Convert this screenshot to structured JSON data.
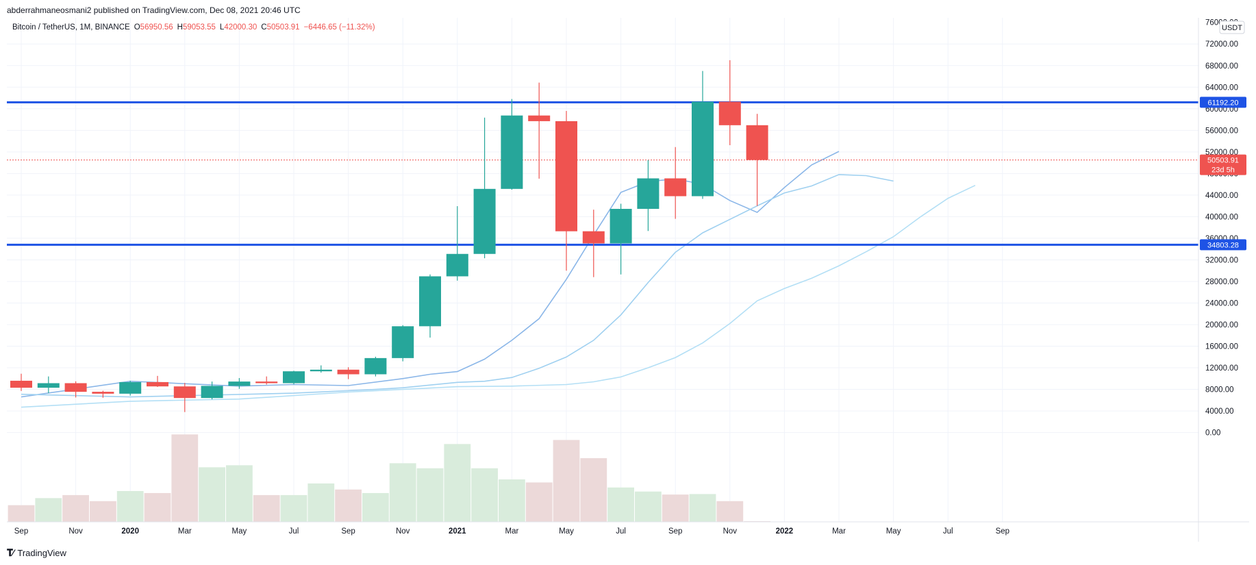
{
  "publish_line": "abderrahmaneosmani2 published on TradingView.com, Dec 08, 2021 20:46 UTC",
  "legend": {
    "symbol": "Bitcoin / TetherUS, 1M, BINANCE",
    "o_label": "O",
    "o_value": "56950.56",
    "h_label": "H",
    "h_value": "59053.55",
    "l_label": "L",
    "l_value": "42000.30",
    "c_label": "C",
    "c_value": "50503.91",
    "change": "−6446.65 (−11.32%)"
  },
  "currency_button": "USDT",
  "footer_logo": "TradingView",
  "colors": {
    "up": "#26a69a",
    "down": "#ef5350",
    "volume_up": "#d9ecdc",
    "volume_down": "#ecd9d9",
    "hline": "#1e53e5",
    "ma_fast": "#8ab6e8",
    "ma_mid": "#9fd0f0",
    "ma_slow": "#b3dff5",
    "grid": "#f0f3fa",
    "axis_text": "#131722"
  },
  "chart_data": {
    "type": "candlestick",
    "symbol": "Bitcoin / TetherUS",
    "interval": "1M",
    "exchange": "BINANCE",
    "ylim": [
      -2500,
      76000
    ],
    "y_ticks": [
      0,
      4000,
      8000,
      12000,
      16000,
      20000,
      24000,
      28000,
      32000,
      36000,
      40000,
      44000,
      48000,
      52000,
      56000,
      60000,
      64000,
      68000,
      72000
    ],
    "y_tick_labels": [
      "0.00",
      "4000.00",
      "8000.00",
      "12000.00",
      "16000.00",
      "20000.00",
      "24000.00",
      "28000.00",
      "32000.00",
      "36000.00",
      "40000.00",
      "44000.00",
      "48000.00",
      "52000.00",
      "56000.00",
      "60000.00",
      "64000.00",
      "68000.00",
      "72000.00"
    ],
    "y_top_partial_label": "76000.00",
    "x_tick_labels": [
      {
        "label": "Sep",
        "month_index": 0,
        "bold": false
      },
      {
        "label": "Nov",
        "month_index": 2,
        "bold": false
      },
      {
        "label": "2020",
        "month_index": 4,
        "bold": true
      },
      {
        "label": "Mar",
        "month_index": 6,
        "bold": false
      },
      {
        "label": "May",
        "month_index": 8,
        "bold": false
      },
      {
        "label": "Jul",
        "month_index": 10,
        "bold": false
      },
      {
        "label": "Sep",
        "month_index": 12,
        "bold": false
      },
      {
        "label": "Nov",
        "month_index": 14,
        "bold": false
      },
      {
        "label": "2021",
        "month_index": 16,
        "bold": true
      },
      {
        "label": "Mar",
        "month_index": 18,
        "bold": false
      },
      {
        "label": "May",
        "month_index": 20,
        "bold": false
      },
      {
        "label": "Jul",
        "month_index": 22,
        "bold": false
      },
      {
        "label": "Sep",
        "month_index": 24,
        "bold": false
      },
      {
        "label": "Nov",
        "month_index": 26,
        "bold": false
      },
      {
        "label": "2022",
        "month_index": 28,
        "bold": true
      },
      {
        "label": "Mar",
        "month_index": 30,
        "bold": false
      },
      {
        "label": "May",
        "month_index": 32,
        "bold": false
      },
      {
        "label": "Jul",
        "month_index": 34,
        "bold": false
      },
      {
        "label": "Sep",
        "month_index": 36,
        "bold": false
      }
    ],
    "candles": [
      {
        "month": "2019-09",
        "open": 9600,
        "high": 10900,
        "low": 7700,
        "close": 8300
      },
      {
        "month": "2019-10",
        "open": 8300,
        "high": 10400,
        "low": 7300,
        "close": 9150
      },
      {
        "month": "2019-11",
        "open": 9150,
        "high": 9500,
        "low": 6500,
        "close": 7550
      },
      {
        "month": "2019-12",
        "open": 7550,
        "high": 7750,
        "low": 6450,
        "close": 7200
      },
      {
        "month": "2020-01",
        "open": 7200,
        "high": 9600,
        "low": 6850,
        "close": 9350
      },
      {
        "month": "2020-02",
        "open": 9350,
        "high": 10500,
        "low": 8450,
        "close": 8550
      },
      {
        "month": "2020-03",
        "open": 8550,
        "high": 9200,
        "low": 3800,
        "close": 6400
      },
      {
        "month": "2020-04",
        "open": 6400,
        "high": 9450,
        "low": 6150,
        "close": 8650
      },
      {
        "month": "2020-05",
        "open": 8650,
        "high": 10100,
        "low": 8100,
        "close": 9450
      },
      {
        "month": "2020-06",
        "open": 9450,
        "high": 10400,
        "low": 8900,
        "close": 9150
      },
      {
        "month": "2020-07",
        "open": 9150,
        "high": 11450,
        "low": 8950,
        "close": 11350
      },
      {
        "month": "2020-08",
        "open": 11350,
        "high": 12450,
        "low": 11100,
        "close": 11650
      },
      {
        "month": "2020-09",
        "open": 11650,
        "high": 12100,
        "low": 9900,
        "close": 10800
      },
      {
        "month": "2020-10",
        "open": 10800,
        "high": 14050,
        "low": 10400,
        "close": 13800
      },
      {
        "month": "2020-11",
        "open": 13800,
        "high": 19900,
        "low": 13200,
        "close": 19700
      },
      {
        "month": "2020-12",
        "open": 19700,
        "high": 29300,
        "low": 17600,
        "close": 28950
      },
      {
        "month": "2021-01",
        "open": 28950,
        "high": 41950,
        "low": 28150,
        "close": 33100
      },
      {
        "month": "2021-02",
        "open": 33100,
        "high": 58350,
        "low": 32300,
        "close": 45150
      },
      {
        "month": "2021-03",
        "open": 45150,
        "high": 61800,
        "low": 45000,
        "close": 58750
      },
      {
        "month": "2021-04",
        "open": 58750,
        "high": 64850,
        "low": 47050,
        "close": 57700
      },
      {
        "month": "2021-05",
        "open": 57700,
        "high": 59600,
        "low": 30000,
        "close": 37300
      },
      {
        "month": "2021-06",
        "open": 37300,
        "high": 41300,
        "low": 28800,
        "close": 35050
      },
      {
        "month": "2021-07",
        "open": 35050,
        "high": 42400,
        "low": 29300,
        "close": 41450
      },
      {
        "month": "2021-08",
        "open": 41450,
        "high": 50500,
        "low": 37350,
        "close": 47100
      },
      {
        "month": "2021-09",
        "open": 47100,
        "high": 52900,
        "low": 39600,
        "close": 43800
      },
      {
        "month": "2021-10",
        "open": 43800,
        "high": 67000,
        "low": 43300,
        "close": 61300
      },
      {
        "month": "2021-11",
        "open": 61300,
        "high": 69000,
        "low": 53250,
        "close": 56950
      },
      {
        "month": "2021-12",
        "open": 56950.56,
        "high": 59053.55,
        "low": 42000.3,
        "close": 50503.91
      }
    ],
    "volume": [
      {
        "month": "2019-09",
        "value": 3300,
        "up": false
      },
      {
        "month": "2019-10",
        "value": 4700,
        "up": true
      },
      {
        "month": "2019-11",
        "value": 5300,
        "up": false
      },
      {
        "month": "2019-12",
        "value": 4100,
        "up": false
      },
      {
        "month": "2020-01",
        "value": 6100,
        "up": true
      },
      {
        "month": "2020-02",
        "value": 5700,
        "up": false
      },
      {
        "month": "2020-03",
        "value": 17300,
        "up": false
      },
      {
        "month": "2020-04",
        "value": 10800,
        "up": true
      },
      {
        "month": "2020-05",
        "value": 11200,
        "up": true
      },
      {
        "month": "2020-06",
        "value": 5300,
        "up": false
      },
      {
        "month": "2020-07",
        "value": 5300,
        "up": true
      },
      {
        "month": "2020-08",
        "value": 7600,
        "up": true
      },
      {
        "month": "2020-09",
        "value": 6400,
        "up": false
      },
      {
        "month": "2020-10",
        "value": 5700,
        "up": true
      },
      {
        "month": "2020-11",
        "value": 11600,
        "up": true
      },
      {
        "month": "2020-12",
        "value": 10600,
        "up": true
      },
      {
        "month": "2021-01",
        "value": 15400,
        "up": true
      },
      {
        "month": "2021-02",
        "value": 10600,
        "up": true
      },
      {
        "month": "2021-03",
        "value": 8400,
        "up": true
      },
      {
        "month": "2021-04",
        "value": 7800,
        "up": false
      },
      {
        "month": "2021-05",
        "value": 16200,
        "up": false
      },
      {
        "month": "2021-06",
        "value": 12600,
        "up": false
      },
      {
        "month": "2021-07",
        "value": 6800,
        "up": true
      },
      {
        "month": "2021-08",
        "value": 6000,
        "up": true
      },
      {
        "month": "2021-09",
        "value": 5400,
        "up": false
      },
      {
        "month": "2021-10",
        "value": 5500,
        "up": true
      },
      {
        "month": "2021-11",
        "value": 4100,
        "up": false
      },
      {
        "month": "2021-12",
        "value": 100,
        "up": false
      }
    ],
    "moving_averages": [
      {
        "key": "ma_fast",
        "points": [
          [
            0,
            6600
          ],
          [
            4,
            9500
          ],
          [
            8,
            8600
          ],
          [
            10,
            8900
          ],
          [
            12,
            8700
          ],
          [
            14,
            10000
          ],
          [
            15,
            10800
          ],
          [
            16,
            11300
          ],
          [
            17,
            13600
          ],
          [
            18,
            17100
          ],
          [
            19,
            21100
          ],
          [
            20,
            28400
          ],
          [
            21,
            36600
          ],
          [
            22,
            44500
          ],
          [
            23,
            46500
          ],
          [
            24,
            47000
          ],
          [
            25,
            46000
          ],
          [
            26,
            43000
          ],
          [
            27,
            40800
          ],
          [
            28,
            45400
          ],
          [
            29,
            49600
          ],
          [
            30,
            52100
          ]
        ]
      },
      {
        "key": "ma_mid",
        "points": [
          [
            0,
            7100
          ],
          [
            4,
            6600
          ],
          [
            10,
            7300
          ],
          [
            13,
            8000
          ],
          [
            14,
            8300
          ],
          [
            16,
            9300
          ],
          [
            17,
            9500
          ],
          [
            18,
            10200
          ],
          [
            19,
            11900
          ],
          [
            20,
            14000
          ],
          [
            21,
            17100
          ],
          [
            22,
            21800
          ],
          [
            23,
            27800
          ],
          [
            24,
            33400
          ],
          [
            25,
            37000
          ],
          [
            26,
            39500
          ],
          [
            27,
            42000
          ],
          [
            28,
            44400
          ],
          [
            29,
            45700
          ],
          [
            30,
            47800
          ],
          [
            31,
            47600
          ],
          [
            32,
            46600
          ]
        ]
      },
      {
        "key": "ma_slow",
        "points": [
          [
            0,
            4700
          ],
          [
            4,
            5800
          ],
          [
            8,
            6200
          ],
          [
            12,
            7500
          ],
          [
            14,
            8000
          ],
          [
            16,
            8500
          ],
          [
            18,
            8600
          ],
          [
            20,
            8900
          ],
          [
            21,
            9400
          ],
          [
            22,
            10300
          ],
          [
            23,
            12000
          ],
          [
            24,
            13900
          ],
          [
            25,
            16600
          ],
          [
            26,
            20200
          ],
          [
            27,
            24400
          ],
          [
            28,
            26700
          ],
          [
            29,
            28600
          ],
          [
            30,
            30900
          ],
          [
            31,
            33500
          ],
          [
            32,
            36300
          ],
          [
            33,
            40000
          ],
          [
            34,
            43400
          ],
          [
            35,
            45800
          ]
        ]
      }
    ],
    "horizontal_lines": [
      {
        "value": 61192.2,
        "label": "61192.20"
      },
      {
        "value": 34803.28,
        "label": "34803.28"
      }
    ],
    "last_price": {
      "value": 50503.91,
      "label": "50503.91",
      "countdown": "23d 5h"
    }
  }
}
